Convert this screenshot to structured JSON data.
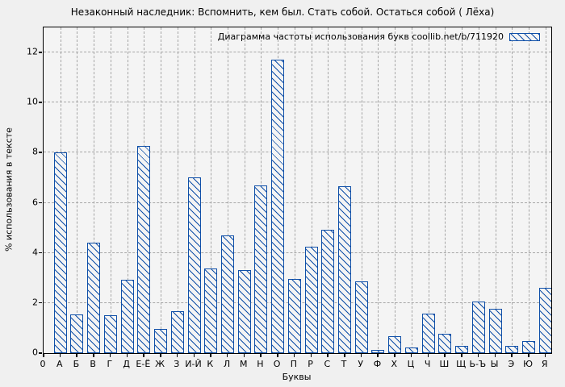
{
  "chart_data": {
    "type": "bar",
    "title": "Незаконный наследник: Вспомнить, кем был. Стать собой. Остаться собой ( Лёха)",
    "legend": "Диаграмма частоты использования букв coollib.net/b/711920",
    "legend_position": "top-right",
    "xlabel": "Буквы",
    "ylabel": "% использования в тексте",
    "origin_tick_label": "0",
    "categories": [
      "А",
      "Б",
      "В",
      "Г",
      "Д",
      "Е-Ё",
      "Ж",
      "З",
      "И-Й",
      "К",
      "Л",
      "М",
      "Н",
      "О",
      "П",
      "Р",
      "С",
      "Т",
      "У",
      "Ф",
      "Х",
      "Ц",
      "Ч",
      "Ш",
      "Щ",
      "Ь-Ъ",
      "Ы",
      "Э",
      "Ю",
      "Я"
    ],
    "values": [
      8.0,
      1.53,
      4.4,
      1.5,
      2.92,
      8.27,
      0.97,
      1.66,
      7.03,
      3.38,
      4.69,
      3.33,
      6.68,
      11.7,
      2.95,
      4.24,
      4.91,
      6.66,
      2.85,
      0.12,
      0.68,
      0.24,
      1.58,
      0.78,
      0.29,
      2.06,
      1.76,
      0.3,
      0.49,
      2.61
    ],
    "yticks": [
      0,
      2,
      4,
      6,
      8,
      10,
      12
    ],
    "ylim": [
      0,
      13
    ],
    "grid": true,
    "hatch_direction": "backslash",
    "colors": {
      "bar_hatch_and_border": "#0f4fa8",
      "bar_fill": "#f4f4f4",
      "background": "#f0f0f0",
      "gridline": "#a6a6a6",
      "axis_border": "#000000",
      "text": "#000000"
    }
  }
}
